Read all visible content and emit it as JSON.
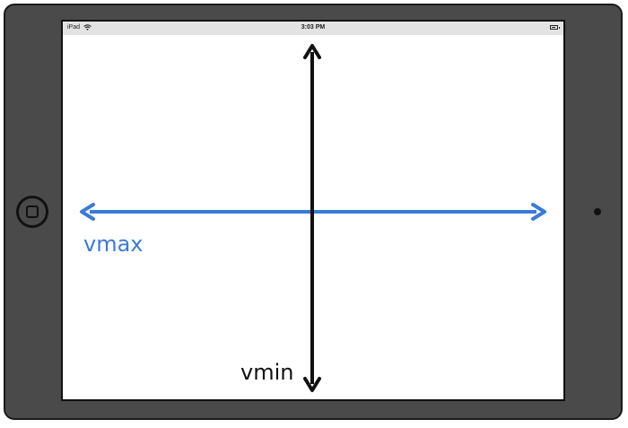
{
  "status_bar": {
    "device": "iPad",
    "time": "3:03 PM",
    "wifi_icon": "wifi-icon",
    "battery_icon": "battery-icon"
  },
  "labels": {
    "vmax": "vmax",
    "vmin": "vmin"
  },
  "colors": {
    "bezel": "#4a4a4a",
    "vmax_arrow": "#3a7bd5",
    "vmin_arrow": "#111111",
    "status_bar": "#e3e3e3"
  }
}
